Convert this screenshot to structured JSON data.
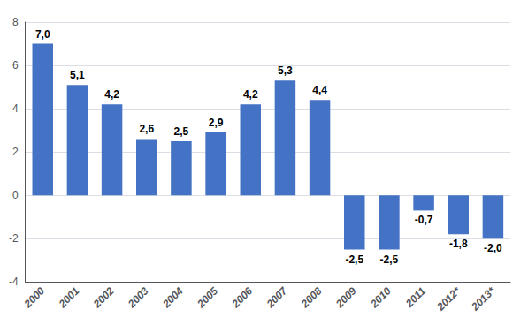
{
  "chart_data": {
    "type": "bar",
    "categories": [
      "2000",
      "2001",
      "2002",
      "2003",
      "2004",
      "2005",
      "2006",
      "2007",
      "2008",
      "2009",
      "2010",
      "2011",
      "2012*",
      "2013*"
    ],
    "values": [
      7.0,
      5.1,
      4.2,
      2.6,
      2.5,
      2.9,
      4.2,
      5.3,
      4.4,
      -2.5,
      -2.5,
      -0.7,
      -1.8,
      -2.0
    ],
    "value_labels": [
      "7,0",
      "5,1",
      "4,2",
      "2,6",
      "2,5",
      "2,9",
      "4,2",
      "5,3",
      "4,4",
      "-2,5",
      "-2,5",
      "-0,7",
      "-1,8",
      "-2,0"
    ],
    "color": "#4472C4",
    "ylim": [
      -4,
      8
    ],
    "yticks": [
      -4,
      -2,
      0,
      2,
      4,
      6,
      8
    ],
    "grid": true,
    "data_labels": true
  }
}
